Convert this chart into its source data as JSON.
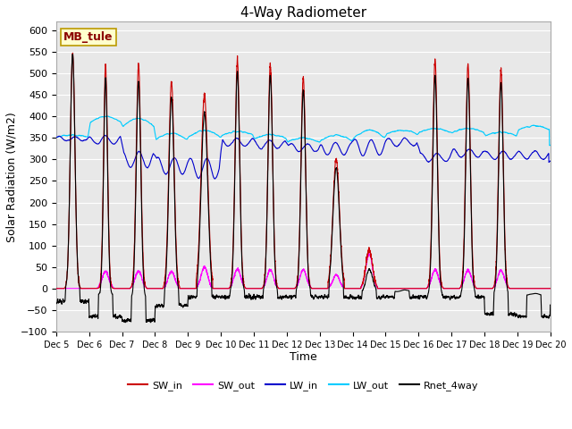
{
  "title": "4-Way Radiometer",
  "xlabel": "Time",
  "ylabel": "Solar Radiation (W/m2)",
  "station_label": "MB_tule",
  "ylim": [
    -100,
    620
  ],
  "yticks": [
    -100,
    -50,
    0,
    50,
    100,
    150,
    200,
    250,
    300,
    350,
    400,
    450,
    500,
    550,
    600
  ],
  "xlim": [
    0,
    15
  ],
  "xtick_labels": [
    "Dec 5",
    "Dec 6",
    "Dec 7",
    "Dec 8",
    "Dec 9",
    "Dec 10",
    "Dec 11",
    "Dec 12",
    "Dec 13",
    "Dec 14",
    "Dec 15",
    "Dec 16",
    "Dec 17",
    "Dec 18",
    "Dec 19",
    "Dec 20"
  ],
  "series": {
    "SW_in": {
      "color": "#cc0000",
      "lw": 0.8
    },
    "SW_out": {
      "color": "#ff00ff",
      "lw": 0.8
    },
    "LW_in": {
      "color": "#0000cc",
      "lw": 0.8
    },
    "LW_out": {
      "color": "#00ccff",
      "lw": 0.8
    },
    "Rnet_4way": {
      "color": "#000000",
      "lw": 0.8
    }
  },
  "bg_color": "#e8e8e8",
  "grid_color": "#ffffff",
  "legend_entries": [
    "SW_in",
    "SW_out",
    "LW_in",
    "LW_out",
    "Rnet_4way"
  ],
  "legend_colors": [
    "#cc0000",
    "#ff00ff",
    "#0000cc",
    "#00ccff",
    "#000000"
  ],
  "figsize": [
    6.4,
    4.8
  ],
  "dpi": 100
}
